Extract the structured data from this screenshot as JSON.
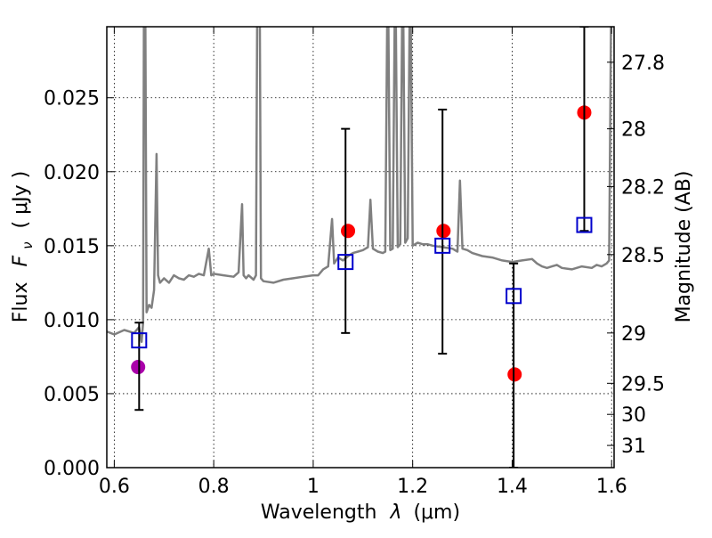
{
  "chart_data": {
    "type": "scatter",
    "title": "",
    "xlabel_main": "Wavelength",
    "xlabel_symbol": "λ",
    "xlabel_unit": "(μm)",
    "ylabel_main": "Flux",
    "ylabel_symbol": "F",
    "ylabel_subscript": "ν",
    "ylabel_unit": "( μJy )",
    "ylabel_right": "Magnitude (AB)",
    "xlim": [
      0.585,
      1.605
    ],
    "ylim": [
      0.0,
      0.0298
    ],
    "grid": true,
    "x_ticks": [
      0.6,
      0.8,
      1.0,
      1.2,
      1.4,
      1.6
    ],
    "x_tick_labels": [
      "0.6",
      "0.8",
      "1",
      "1.2",
      "1.4",
      "1.6"
    ],
    "y_ticks": [
      0.0,
      0.005,
      0.01,
      0.015,
      0.02,
      0.025
    ],
    "y_tick_labels": [
      "0.000",
      "0.005",
      "0.010",
      "0.015",
      "0.020",
      "0.025"
    ],
    "right_axis_ticks": [
      {
        "label": "27.8",
        "flux": 0.0274
      },
      {
        "label": "28",
        "flux": 0.0229
      },
      {
        "label": "28.2",
        "flux": 0.019
      },
      {
        "label": "28.5",
        "flux": 0.0144
      },
      {
        "label": "29",
        "flux": 0.0091
      },
      {
        "label": "29.5",
        "flux": 0.0057
      },
      {
        "label": "30",
        "flux": 0.0036
      },
      {
        "label": "31",
        "flux": 0.0015
      }
    ],
    "colors": {
      "spectrum": "#808080",
      "observed": "#ff0000",
      "observed_alt": "#aa00aa",
      "model": "#0000cc",
      "errorbar": "#000000"
    },
    "series": [
      {
        "kind": "line",
        "x": [
          0.585,
          0.6,
          0.62,
          0.64,
          0.65,
          0.655,
          0.658,
          0.66,
          0.662,
          0.665,
          0.67,
          0.675,
          0.68,
          0.685,
          0.688,
          0.692,
          0.7,
          0.71,
          0.72,
          0.73,
          0.74,
          0.75,
          0.76,
          0.77,
          0.78,
          0.79,
          0.795,
          0.8,
          0.82,
          0.84,
          0.85,
          0.857,
          0.86,
          0.865,
          0.87,
          0.88,
          0.885,
          0.888,
          0.892,
          0.895,
          0.9,
          0.92,
          0.94,
          0.96,
          0.98,
          1.0,
          1.01,
          1.02,
          1.03,
          1.038,
          1.042,
          1.05,
          1.06,
          1.07,
          1.08,
          1.09,
          1.1,
          1.11,
          1.115,
          1.12,
          1.13,
          1.14,
          1.145,
          1.15,
          1.155,
          1.16,
          1.165,
          1.17,
          1.175,
          1.18,
          1.185,
          1.19,
          1.195,
          1.2,
          1.21,
          1.22,
          1.23,
          1.24,
          1.26,
          1.28,
          1.29,
          1.295,
          1.3,
          1.31,
          1.32,
          1.34,
          1.36,
          1.38,
          1.4,
          1.42,
          1.44,
          1.45,
          1.46,
          1.47,
          1.48,
          1.49,
          1.5,
          1.52,
          1.54,
          1.56,
          1.57,
          1.58,
          1.59,
          1.595,
          1.6,
          1.605
        ],
        "y": [
          0.0092,
          0.009,
          0.0093,
          0.0091,
          0.0095,
          0.0085,
          0.0098,
          0.035,
          0.035,
          0.0105,
          0.011,
          0.0108,
          0.012,
          0.0212,
          0.013,
          0.0125,
          0.0128,
          0.0125,
          0.013,
          0.0128,
          0.0127,
          0.013,
          0.0129,
          0.0131,
          0.013,
          0.0148,
          0.013,
          0.0131,
          0.013,
          0.0129,
          0.0132,
          0.0178,
          0.013,
          0.0128,
          0.013,
          0.0127,
          0.013,
          0.035,
          0.035,
          0.0128,
          0.0126,
          0.0125,
          0.0127,
          0.0128,
          0.0129,
          0.013,
          0.013,
          0.0134,
          0.0136,
          0.0168,
          0.0138,
          0.0142,
          0.014,
          0.0143,
          0.0145,
          0.0146,
          0.0147,
          0.0149,
          0.0181,
          0.0148,
          0.0146,
          0.0145,
          0.0146,
          0.035,
          0.0147,
          0.0148,
          0.035,
          0.0149,
          0.0151,
          0.035,
          0.0152,
          0.0155,
          0.035,
          0.015,
          0.0152,
          0.0151,
          0.0151,
          0.015,
          0.0149,
          0.0148,
          0.0146,
          0.0194,
          0.0148,
          0.0147,
          0.0145,
          0.0143,
          0.0142,
          0.014,
          0.0139,
          0.014,
          0.0141,
          0.0138,
          0.0136,
          0.0135,
          0.0136,
          0.0137,
          0.0135,
          0.0134,
          0.0136,
          0.0135,
          0.0137,
          0.0136,
          0.0138,
          0.014,
          0.035,
          0.035
        ]
      },
      {
        "kind": "points",
        "marker": "circle",
        "points": [
          {
            "x": 0.648,
            "y": 0.0068,
            "color": "#aa00aa"
          },
          {
            "x": 1.07,
            "y": 0.016,
            "color": "#ff0000"
          },
          {
            "x": 1.262,
            "y": 0.016,
            "color": "#ff0000"
          },
          {
            "x": 1.405,
            "y": 0.0063,
            "color": "#ff0000"
          },
          {
            "x": 1.545,
            "y": 0.024,
            "color": "#ff0000"
          }
        ]
      },
      {
        "kind": "points",
        "marker": "square-open",
        "points": [
          {
            "x": 0.65,
            "y": 0.0086,
            "yerr_low": 0.0039,
            "yerr_high": 0.0098
          },
          {
            "x": 1.065,
            "y": 0.0139,
            "yerr_low": 0.0091,
            "yerr_high": 0.0229
          },
          {
            "x": 1.26,
            "y": 0.015,
            "yerr_low": 0.0077,
            "yerr_high": 0.0242
          },
          {
            "x": 1.403,
            "y": 0.0116,
            "yerr_low": 0.0,
            "yerr_high": 0.0138
          },
          {
            "x": 1.545,
            "y": 0.0164,
            "yerr_low": 0.016,
            "yerr_high": 0.0298
          }
        ]
      }
    ]
  }
}
